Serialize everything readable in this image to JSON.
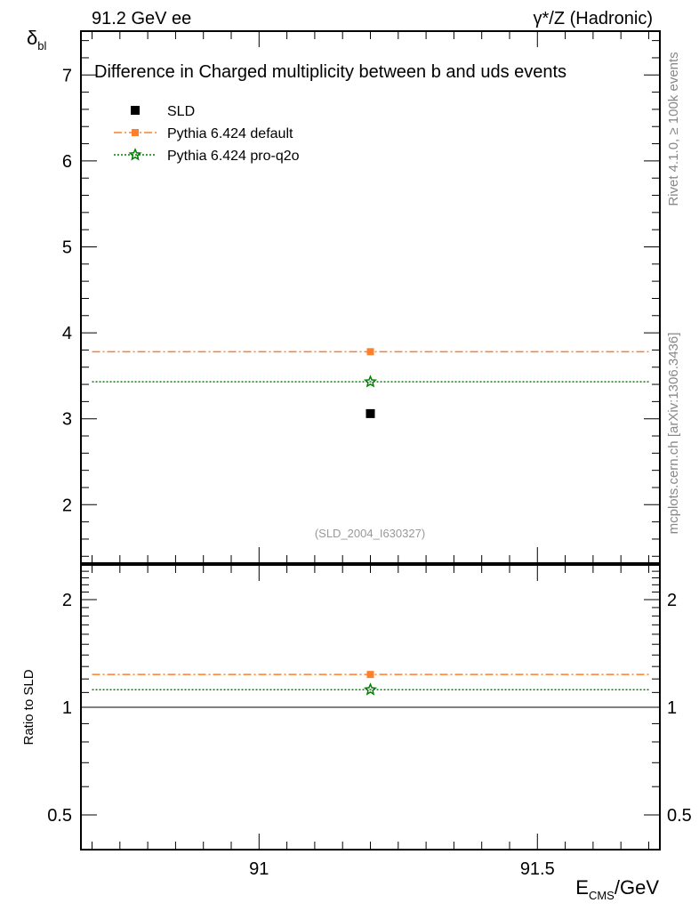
{
  "chart_data": [
    {
      "type": "line",
      "panel": "main",
      "title": "Difference in Charged multiplicity between b and uds events",
      "top_left_label": "91.2 GeV ee",
      "top_right_label": "γ*/Z (Hadronic)",
      "ylabel": "δ",
      "ylabel_sub": "bl",
      "ylim": [
        1.32,
        7.51
      ],
      "xlim": [
        90.68,
        91.72
      ],
      "yticks": [
        2,
        3,
        4,
        5,
        6,
        7
      ],
      "grid": false,
      "legend_placement": "top-left",
      "analysis_label": "(SLD_2004_I630327)",
      "series": [
        {
          "name": "SLD",
          "kind": "data",
          "color": "#000000",
          "marker": "square",
          "x": [
            91.2
          ],
          "y": [
            3.06
          ]
        },
        {
          "name": "Pythia 6.424 default",
          "kind": "mc",
          "color": "#ff7f2a",
          "marker": "square",
          "dash": "dashdot",
          "x": [
            90.7,
            91.2,
            91.7
          ],
          "y": [
            3.78,
            3.78,
            3.78
          ]
        },
        {
          "name": "Pythia 6.424 pro-q2o",
          "kind": "mc",
          "color": "#008000",
          "marker": "star",
          "dash": "dotted",
          "x": [
            90.7,
            91.2,
            91.7
          ],
          "y": [
            3.43,
            3.43,
            3.43
          ]
        }
      ]
    },
    {
      "type": "line",
      "panel": "ratio",
      "ylabel": "Ratio to SLD",
      "xlabel": "E",
      "xlabel_sub": "CMS",
      "xlabel_suffix": "/GeV",
      "yscale": "log",
      "ylim": [
        0.4,
        2.5
      ],
      "yticks": [
        0.5,
        1,
        2
      ],
      "ytick_labels": [
        "0.5",
        "1",
        "2"
      ],
      "xticks": [
        91,
        91.5
      ],
      "xtick_labels": [
        "91",
        "91.5"
      ],
      "series": [
        {
          "name": "Pythia 6.424 default",
          "color": "#ff7f2a",
          "x": [
            90.7,
            91.2,
            91.7
          ],
          "y": [
            1.235,
            1.235,
            1.235
          ]
        },
        {
          "name": "Pythia 6.424 pro-q2o",
          "color": "#008000",
          "x": [
            90.7,
            91.2,
            91.7
          ],
          "y": [
            1.12,
            1.12,
            1.12
          ]
        }
      ]
    }
  ],
  "side_labels": {
    "rivet": "Rivet 4.1.0, ≥ 100k events",
    "mcplots": "mcplots.cern.ch [arXiv:1306.3436]"
  }
}
